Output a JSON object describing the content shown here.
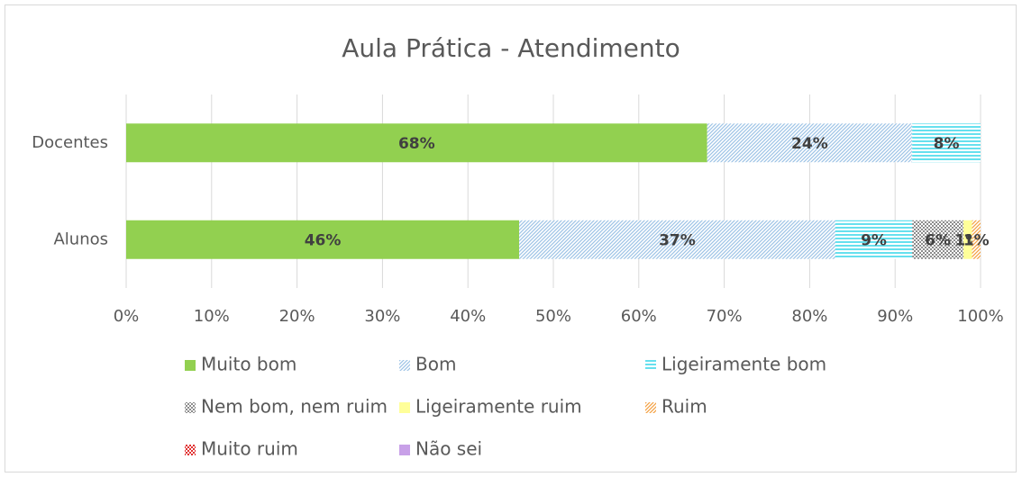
{
  "chart_data": {
    "type": "stacked_barh",
    "title": "Aula Prática - Atendimento",
    "categories": [
      "Docentes",
      "Alunos"
    ],
    "series": [
      {
        "name": "Muito bom",
        "color": "#92d050",
        "pattern": "solid",
        "values": [
          68,
          46
        ],
        "value_labels": [
          "68%",
          "46%"
        ]
      },
      {
        "name": "Bom",
        "color": "#9dc3e6",
        "pattern": "diagonal",
        "values": [
          24,
          37
        ],
        "value_labels": [
          "24%",
          "37%"
        ]
      },
      {
        "name": "Ligeiramente bom",
        "color": "#66e0ee",
        "pattern": "horizontal",
        "values": [
          8,
          9
        ],
        "value_labels": [
          "8%",
          "9%"
        ]
      },
      {
        "name": "Nem bom, nem ruim",
        "color": "#8c8c8c",
        "pattern": "checker",
        "values": [
          0,
          6
        ],
        "value_labels": [
          null,
          "6%"
        ]
      },
      {
        "name": "Ligeiramente ruim",
        "color": "#ffff99",
        "pattern": "solid",
        "values": [
          0,
          1
        ],
        "value_labels": [
          null,
          "1%"
        ]
      },
      {
        "name": "Ruim",
        "color": "#f4a040",
        "pattern": "diagonal",
        "values": [
          0,
          1
        ],
        "value_labels": [
          null,
          "1%"
        ]
      },
      {
        "name": "Muito ruim",
        "color": "#e03030",
        "pattern": "checker",
        "values": [
          0,
          0
        ],
        "value_labels": [
          null,
          null
        ]
      },
      {
        "name": "Não sei",
        "color": "#c8a0e8",
        "pattern": "solid",
        "values": [
          0,
          0
        ],
        "value_labels": [
          null,
          null
        ]
      }
    ],
    "xlim": [
      0,
      100
    ],
    "xticks": [
      {
        "value": 0,
        "label": "0%"
      },
      {
        "value": 10,
        "label": "10%"
      },
      {
        "value": 20,
        "label": "20%"
      },
      {
        "value": 30,
        "label": "30%"
      },
      {
        "value": 40,
        "label": "40%"
      },
      {
        "value": 50,
        "label": "50%"
      },
      {
        "value": 60,
        "label": "60%"
      },
      {
        "value": 70,
        "label": "70%"
      },
      {
        "value": 80,
        "label": "80%"
      },
      {
        "value": 90,
        "label": "90%"
      },
      {
        "value": 100,
        "label": "100%"
      }
    ],
    "grid": true,
    "legend": "bottom"
  }
}
